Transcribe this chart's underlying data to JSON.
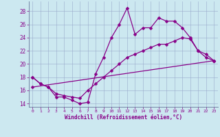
{
  "xlabel": "Windchill (Refroidissement éolien,°C)",
  "xlim": [
    -0.5,
    23.5
  ],
  "ylim": [
    13.5,
    29.5
  ],
  "yticks": [
    14,
    16,
    18,
    20,
    22,
    24,
    26,
    28
  ],
  "xticks": [
    0,
    1,
    2,
    3,
    4,
    5,
    6,
    7,
    8,
    9,
    10,
    11,
    12,
    13,
    14,
    15,
    16,
    17,
    18,
    19,
    20,
    21,
    22,
    23
  ],
  "bg_color": "#cce8f0",
  "line_color": "#880088",
  "grid_color": "#99aacc",
  "series1_x": [
    0,
    1,
    2,
    3,
    4,
    5,
    6,
    7,
    8,
    9,
    10,
    11,
    12,
    13,
    14,
    15,
    16,
    17,
    18,
    19,
    20,
    21,
    22,
    23
  ],
  "series1_y": [
    18,
    17,
    16.5,
    15,
    15,
    14.5,
    14,
    14.2,
    18.5,
    21,
    24,
    26,
    28.5,
    24.5,
    25.5,
    25.5,
    27,
    26.5,
    26.5,
    25.5,
    24,
    22,
    21.5,
    20.5
  ],
  "series2_x": [
    0,
    1,
    2,
    3,
    4,
    5,
    6,
    7,
    8,
    9,
    10,
    11,
    12,
    13,
    14,
    15,
    16,
    17,
    18,
    19,
    20,
    21,
    22,
    23
  ],
  "series2_y": [
    18,
    17,
    16.5,
    15.5,
    15.2,
    15,
    14.8,
    16,
    17,
    18,
    19,
    20,
    21,
    21.5,
    22,
    22.5,
    23,
    23,
    23.5,
    24,
    23.8,
    22,
    21,
    20.5
  ],
  "series3_x": [
    0,
    23
  ],
  "series3_y": [
    16.5,
    20.5
  ],
  "markersize": 2.5,
  "linewidth": 0.9
}
